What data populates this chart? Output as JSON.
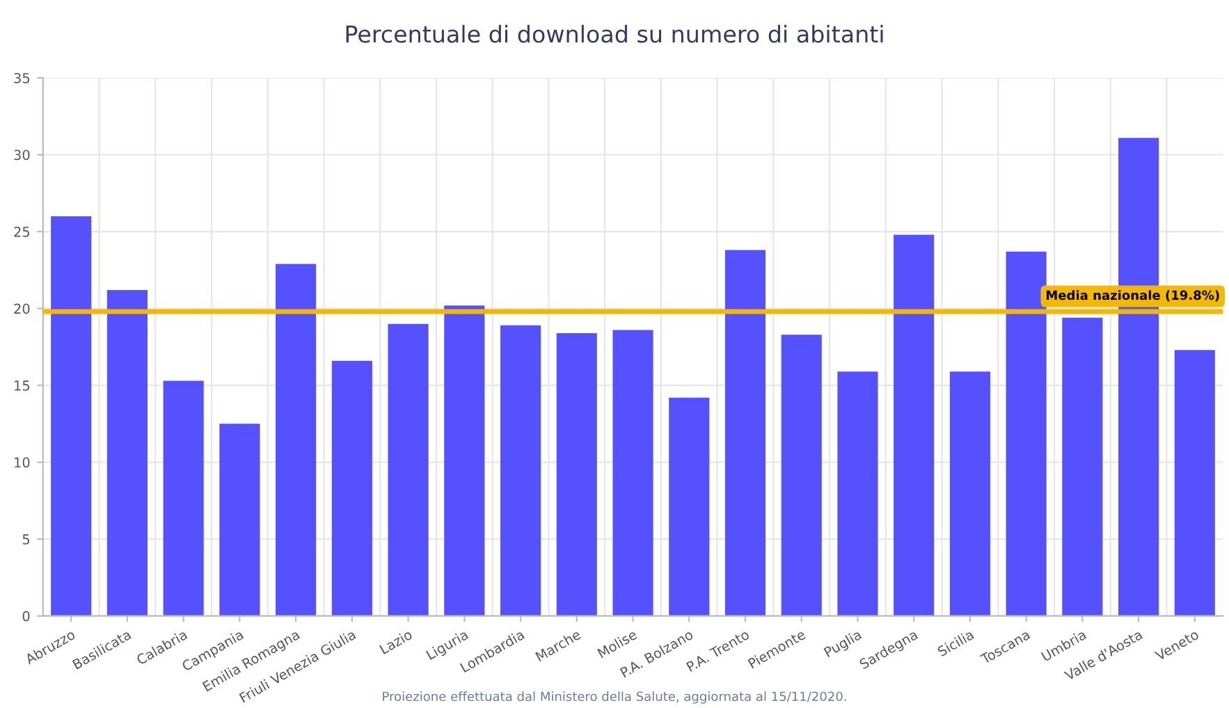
{
  "chart_data": {
    "type": "bar",
    "title": "Percentuale di download su numero di abitanti",
    "categories": [
      "Abruzzo",
      "Basilicata",
      "Calabria",
      "Campania",
      "Emilia Romagna",
      "Friuli Venezia Giulia",
      "Lazio",
      "Liguria",
      "Lombardia",
      "Marche",
      "Molise",
      "P.A. Bolzano",
      "P.A. Trento",
      "Piemonte",
      "Puglia",
      "Sardegna",
      "Sicilia",
      "Toscana",
      "Umbria",
      "Valle d'Aosta",
      "Veneto"
    ],
    "values": [
      26.0,
      21.2,
      15.3,
      12.5,
      22.9,
      16.6,
      19.0,
      20.2,
      18.9,
      18.4,
      18.6,
      14.2,
      23.8,
      18.3,
      15.9,
      24.8,
      15.9,
      23.7,
      19.4,
      31.1,
      17.3
    ],
    "color": "#5551ff",
    "ylim": [
      0,
      35
    ],
    "yticks": [
      0,
      5,
      10,
      15,
      20,
      25,
      30,
      35
    ],
    "grid": true,
    "ref_lines": [
      {
        "axis": "y",
        "value": 19.8,
        "label": "Media nazionale (19.8%)",
        "color": "#f5b800"
      }
    ],
    "annotations": [
      "Proiezione effettuata dal Ministero della Salute, aggiornata al 15/11/2020."
    ]
  }
}
